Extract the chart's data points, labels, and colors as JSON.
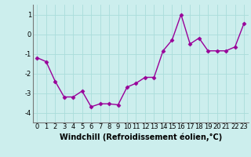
{
  "x": [
    0,
    1,
    2,
    3,
    4,
    5,
    6,
    7,
    8,
    9,
    10,
    11,
    12,
    13,
    14,
    15,
    16,
    17,
    18,
    19,
    20,
    21,
    22,
    23
  ],
  "y": [
    -1.2,
    -1.4,
    -2.4,
    -3.2,
    -3.2,
    -2.9,
    -3.7,
    -3.55,
    -3.55,
    -3.6,
    -2.7,
    -2.5,
    -2.2,
    -2.2,
    -0.85,
    -0.3,
    1.0,
    -0.5,
    -0.2,
    -0.85,
    -0.85,
    -0.85,
    -0.65,
    0.55
  ],
  "xlim": [
    -0.5,
    23.5
  ],
  "ylim": [
    -4.5,
    1.5
  ],
  "xlabel": "Windchill (Refroidissement éolien,°C)",
  "yticks": [
    -4,
    -3,
    -2,
    -1,
    0,
    1
  ],
  "xticks": [
    0,
    1,
    2,
    3,
    4,
    5,
    6,
    7,
    8,
    9,
    10,
    11,
    12,
    13,
    14,
    15,
    16,
    17,
    18,
    19,
    20,
    21,
    22,
    23
  ],
  "line_color": "#990099",
  "marker": "D",
  "marker_size": 2.5,
  "bg_color": "#cceeed",
  "grid_color": "#aadddb",
  "xlabel_fontsize": 7,
  "tick_fontsize": 6,
  "linewidth": 1.0
}
